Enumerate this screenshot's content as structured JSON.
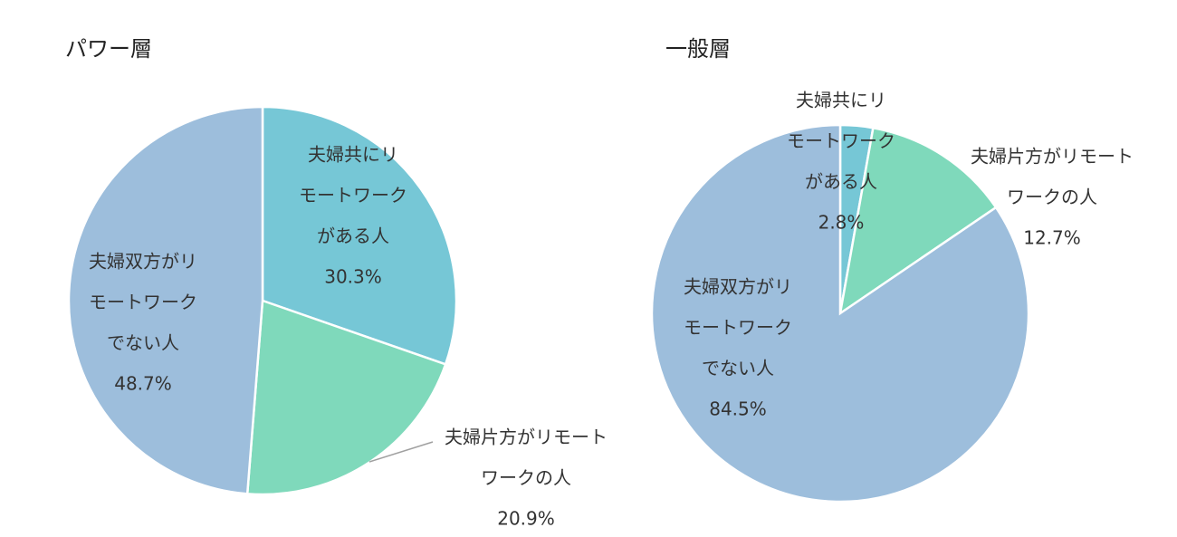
{
  "chart_data": [
    {
      "type": "pie",
      "title": "パワー層",
      "slices": [
        {
          "label_lines": [
            "夫婦共にリ",
            "モートワーク",
            "がある人"
          ],
          "value_label": "30.3%",
          "value": 30.3,
          "color": "#76C7D6"
        },
        {
          "label_lines": [
            "夫婦片方がリモート",
            "ワークの人"
          ],
          "value_label": "20.9%",
          "value": 20.9,
          "color": "#7FD9BB"
        },
        {
          "label_lines": [
            "夫婦双方がリ",
            "モートワーク",
            "でない人"
          ],
          "value_label": "48.7%",
          "value": 48.7,
          "color": "#9DBEDC"
        }
      ]
    },
    {
      "type": "pie",
      "title": "一般層",
      "slices": [
        {
          "label_lines": [
            "夫婦共にリ",
            "モートワーク",
            "がある人"
          ],
          "value_label": "2.8%",
          "value": 2.8,
          "color": "#76C7D6"
        },
        {
          "label_lines": [
            "夫婦片方がリモート",
            "ワークの人"
          ],
          "value_label": "12.7%",
          "value": 12.7,
          "color": "#7FD9BB"
        },
        {
          "label_lines": [
            "夫婦双方がリ",
            "モートワーク",
            "でない人"
          ],
          "value_label": "84.5%",
          "value": 84.5,
          "color": "#9DBEDC"
        }
      ]
    }
  ]
}
